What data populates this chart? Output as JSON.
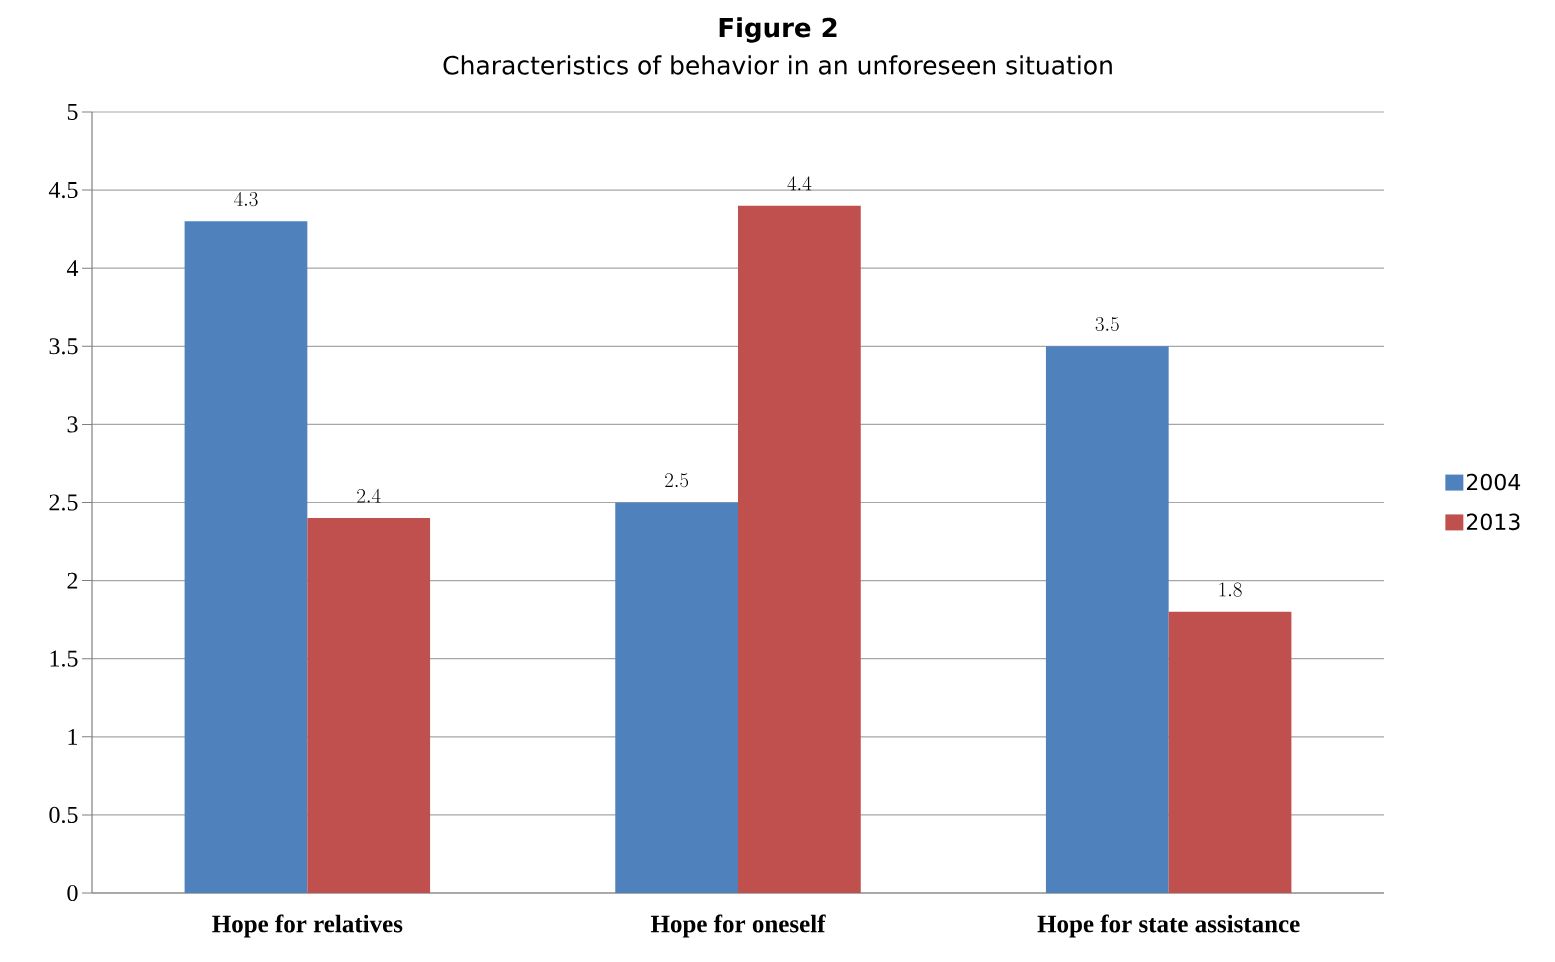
{
  "chart_data": {
    "type": "bar",
    "title": "Figure 2",
    "subtitle": "Characteristics of behavior in an unforeseen situation",
    "categories": [
      "Hope for relatives",
      "Hope for oneself",
      "Hope for state assistance"
    ],
    "series": [
      {
        "name": "2004",
        "color": "#4f81bd",
        "values": [
          4.3,
          2.5,
          3.5
        ]
      },
      {
        "name": "2013",
        "color": "#c0504d",
        "values": [
          2.4,
          4.4,
          1.8
        ]
      }
    ],
    "ylim": [
      0,
      5
    ],
    "yticks": [
      0,
      0.5,
      1,
      1.5,
      2,
      2.5,
      3,
      3.5,
      4,
      4.5,
      5
    ],
    "grid": "y",
    "legend": "right",
    "data_labels": true
  }
}
